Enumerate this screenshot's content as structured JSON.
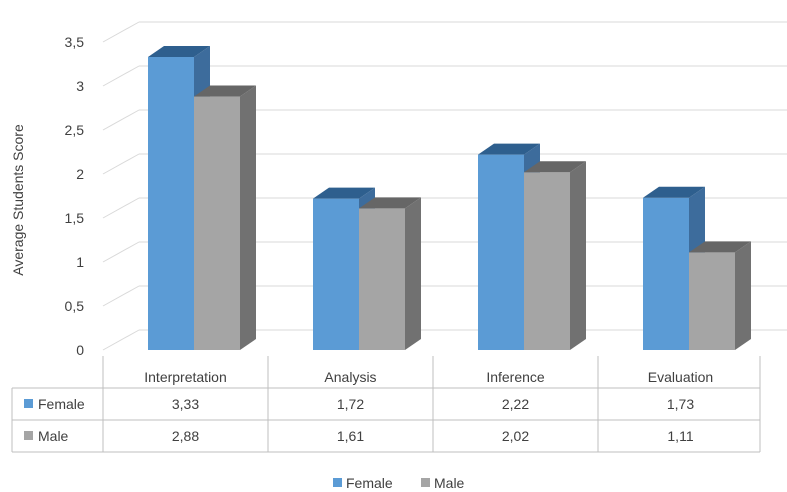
{
  "chart_data": {
    "type": "bar",
    "style": "3d-clustered-column-with-data-table",
    "categories": [
      "Interpretation",
      "Analysis",
      "Inference",
      "Evaluation"
    ],
    "series": [
      {
        "name": "Female",
        "values": [
          3.33,
          1.72,
          2.22,
          1.73
        ],
        "labels": [
          "3,33",
          "1,72",
          "2,22",
          "1,73"
        ],
        "color": "#5B9BD5",
        "side_color": "#3D6C9C",
        "top_color": "#2E5F8E"
      },
      {
        "name": "Male",
        "values": [
          2.88,
          1.61,
          2.02,
          1.11
        ],
        "labels": [
          "2,88",
          "1,61",
          "2,02",
          "1,11"
        ],
        "color": "#A5A5A5",
        "side_color": "#717171",
        "top_color": "#666666"
      }
    ],
    "ylabel": "Average Students Score",
    "xlabel": "",
    "ylim": [
      0,
      3.5
    ],
    "yticks": [
      0,
      0.5,
      1,
      1.5,
      2,
      2.5,
      3,
      3.5
    ],
    "ytick_labels": [
      "0",
      "0,5",
      "1",
      "1,5",
      "2",
      "2,5",
      "3",
      "3,5"
    ],
    "grid": true,
    "legend_position": "bottom",
    "data_table": true,
    "colors": {
      "grid": "#D9D9D9",
      "text": "#404040"
    }
  }
}
